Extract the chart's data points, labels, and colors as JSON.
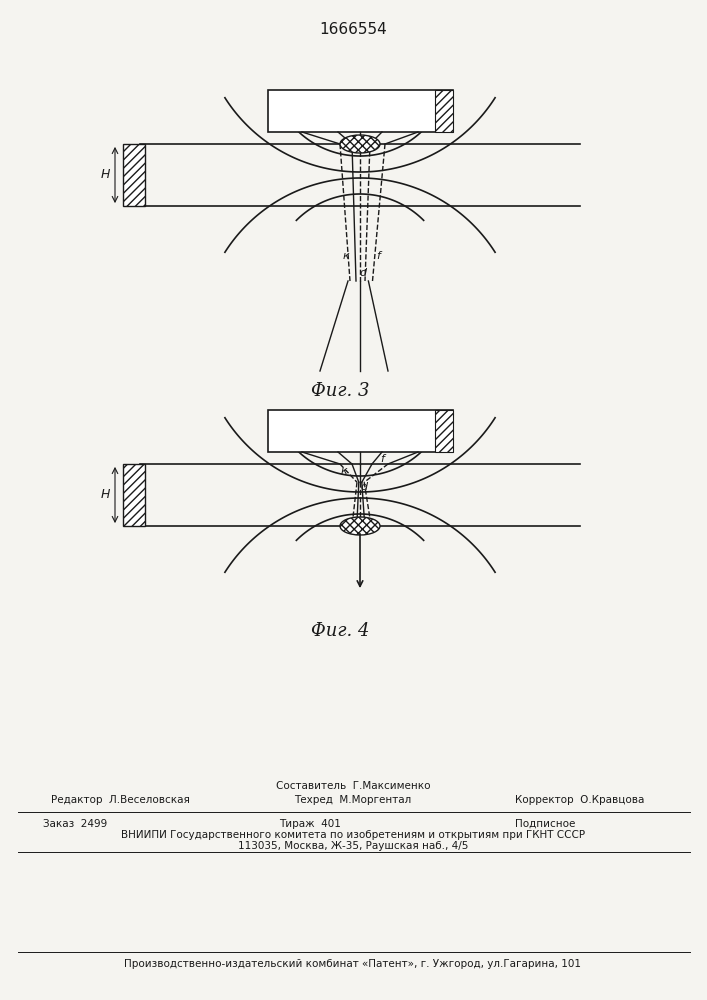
{
  "patent_number": "1666554",
  "fig3_label": "Φиг. 3",
  "fig4_label": "Φиг. 4",
  "H_label": "H",
  "k_label": "к",
  "f_label": "f",
  "d_label": "d",
  "bg_color": "#f5f4f0",
  "line_color": "#1a1a1a",
  "footer_line1_col1": "Редактор  Л.Веселовская",
  "footer_line1_mid_top": "Составитель  Г.Максименко",
  "footer_line1_mid_bot": "Техред  М.Моргентал",
  "footer_line1_col3": "Корректор  О.Кравцова",
  "footer_line2_col1": "Заказ  2499",
  "footer_line2_col2": "Тираж  401",
  "footer_line2_col3": "Подписное",
  "footer_line3": "ВНИИПИ Государственного комитета по изобретениям и открытиям при ГКНТ СССР",
  "footer_line4": "113035, Москва, Ж-35, Раушская наб., 4/5",
  "footer_line5": "Производственно-издательский комбинат «Патент», г. Ужгород, ул.Гагарина, 101"
}
